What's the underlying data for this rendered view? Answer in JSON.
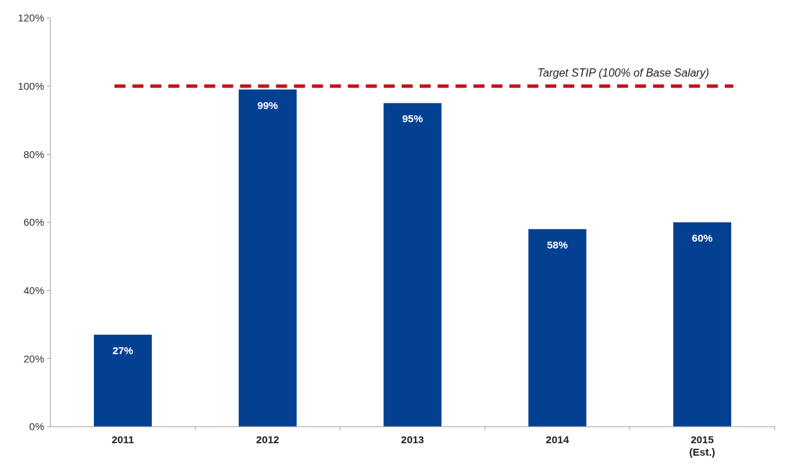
{
  "chart_data": {
    "type": "bar",
    "categories": [
      "2011",
      "2012",
      "2013",
      "2014",
      "2015\n(Est.)"
    ],
    "values": [
      27,
      99,
      95,
      58,
      60
    ],
    "color": "#044092",
    "value_labels": [
      "27%",
      "99%",
      "95%",
      "58%",
      "60%"
    ],
    "ylim": [
      0,
      120
    ],
    "yticks": [
      {
        "value": 0,
        "label": "0%"
      },
      {
        "value": 20,
        "label": "20%"
      },
      {
        "value": 40,
        "label": "40%"
      },
      {
        "value": 60,
        "label": "60%"
      },
      {
        "value": 80,
        "label": "80%"
      },
      {
        "value": 100,
        "label": "100%"
      },
      {
        "value": 120,
        "label": "120%"
      }
    ],
    "ref_lines": [
      {
        "axis": "y",
        "value": 100,
        "label": "Target STIP (100% of Base Salary)",
        "color": "#c0141c",
        "line_style": "dashed"
      }
    ],
    "grid": false
  }
}
